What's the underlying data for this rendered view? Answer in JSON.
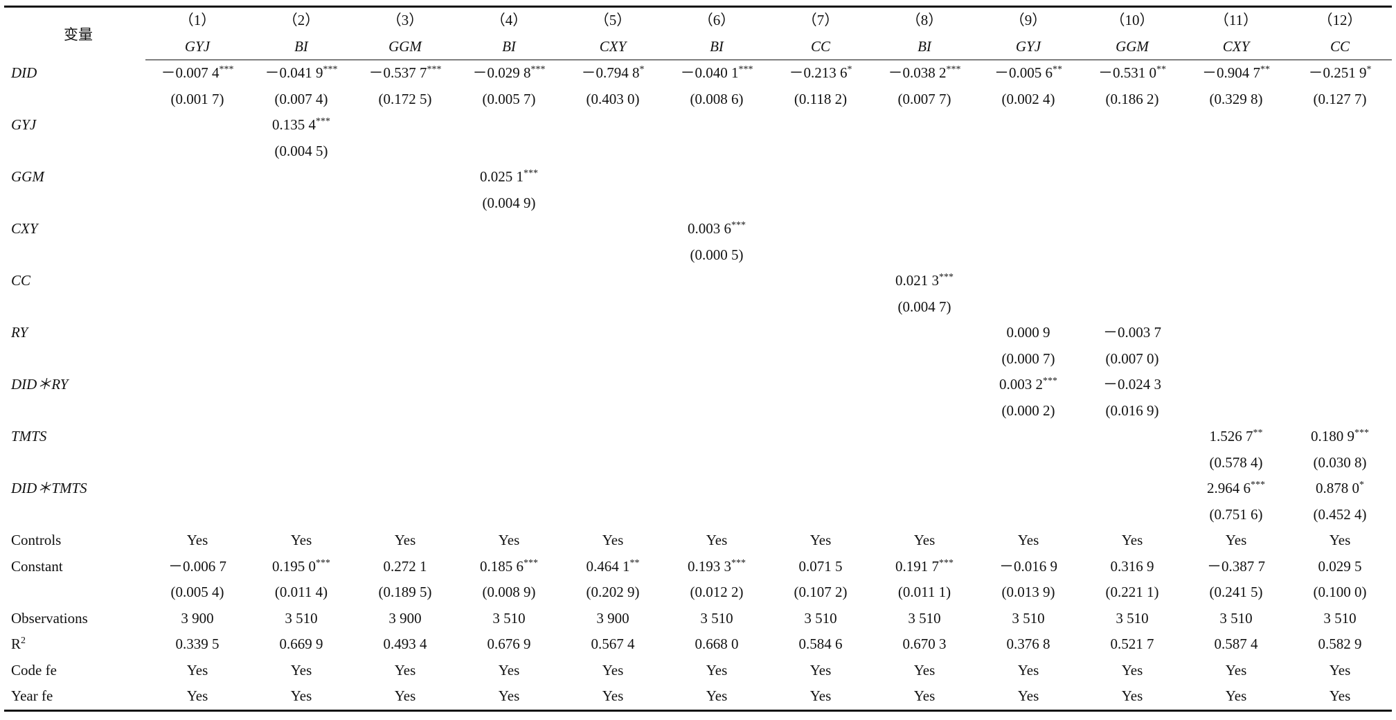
{
  "table": {
    "header": {
      "label": "变量",
      "columns": [
        {
          "number": "（1）",
          "dep": "GYJ"
        },
        {
          "number": "（2）",
          "dep": "BI"
        },
        {
          "number": "（3）",
          "dep": "GGM"
        },
        {
          "number": "（4）",
          "dep": "BI"
        },
        {
          "number": "（5）",
          "dep": "CXY"
        },
        {
          "number": "（6）",
          "dep": "BI"
        },
        {
          "number": "（7）",
          "dep": "CC"
        },
        {
          "number": "（8）",
          "dep": "BI"
        },
        {
          "number": "（9）",
          "dep": "GYJ"
        },
        {
          "number": "（10）",
          "dep": "GGM"
        },
        {
          "number": "（11）",
          "dep": "CXY"
        },
        {
          "number": "（12）",
          "dep": "CC"
        }
      ]
    },
    "variable_rows": [
      {
        "label": "DID",
        "cells": [
          {
            "coef": "－0.007 4",
            "stars": "***",
            "se": "(0.001 7)"
          },
          {
            "coef": "－0.041 9",
            "stars": "***",
            "se": "(0.007 4)"
          },
          {
            "coef": "－0.537 7",
            "stars": "***",
            "se": "(0.172 5)"
          },
          {
            "coef": "－0.029 8",
            "stars": "***",
            "se": "(0.005 7)"
          },
          {
            "coef": "－0.794 8",
            "stars": "*",
            "se": "(0.403 0)"
          },
          {
            "coef": "－0.040 1",
            "stars": "***",
            "se": "(0.008 6)"
          },
          {
            "coef": "－0.213 6",
            "stars": "*",
            "se": "(0.118 2)"
          },
          {
            "coef": "－0.038 2",
            "stars": "***",
            "se": "(0.007 7)"
          },
          {
            "coef": "－0.005 6",
            "stars": "**",
            "se": "(0.002 4)"
          },
          {
            "coef": "－0.531 0",
            "stars": "**",
            "se": "(0.186 2)"
          },
          {
            "coef": "－0.904 7",
            "stars": "**",
            "se": "(0.329 8)"
          },
          {
            "coef": "－0.251 9",
            "stars": "*",
            "se": "(0.127 7)"
          }
        ]
      },
      {
        "label": "GYJ",
        "cells": [
          null,
          {
            "coef": "0.135 4",
            "stars": "***",
            "se": "(0.004 5)"
          },
          null,
          null,
          null,
          null,
          null,
          null,
          null,
          null,
          null,
          null
        ]
      },
      {
        "label": "GGM",
        "cells": [
          null,
          null,
          null,
          {
            "coef": "0.025 1",
            "stars": "***",
            "se": "(0.004 9)"
          },
          null,
          null,
          null,
          null,
          null,
          null,
          null,
          null
        ]
      },
      {
        "label": "CXY",
        "cells": [
          null,
          null,
          null,
          null,
          null,
          {
            "coef": "0.003 6",
            "stars": "***",
            "se": "(0.000 5)"
          },
          null,
          null,
          null,
          null,
          null,
          null
        ]
      },
      {
        "label": "CC",
        "cells": [
          null,
          null,
          null,
          null,
          null,
          null,
          null,
          {
            "coef": "0.021 3",
            "stars": "***",
            "se": "(0.004 7)"
          },
          null,
          null,
          null,
          null
        ]
      },
      {
        "label": "RY",
        "cells": [
          null,
          null,
          null,
          null,
          null,
          null,
          null,
          null,
          {
            "coef": "0.000 9",
            "se": "(0.000 7)"
          },
          {
            "coef": "－0.003 7",
            "se": "(0.007 0)"
          },
          null,
          null
        ]
      },
      {
        "label": "DID＊RY",
        "cells": [
          null,
          null,
          null,
          null,
          null,
          null,
          null,
          null,
          {
            "coef": "0.003 2",
            "stars": "***",
            "se": "(0.000 2)"
          },
          {
            "coef": "－0.024 3",
            "se": "(0.016 9)"
          },
          null,
          null
        ]
      },
      {
        "label": "TMTS",
        "cells": [
          null,
          null,
          null,
          null,
          null,
          null,
          null,
          null,
          null,
          null,
          {
            "coef": "1.526 7",
            "stars": "**",
            "se": "(0.578 4)"
          },
          {
            "coef": "0.180 9",
            "stars": "***",
            "se": "(0.030 8)"
          }
        ]
      },
      {
        "label": "DID＊TMTS",
        "cells": [
          null,
          null,
          null,
          null,
          null,
          null,
          null,
          null,
          null,
          null,
          {
            "coef": "2.964 6",
            "stars": "***",
            "se": "(0.751 6)"
          },
          {
            "coef": "0.878 0",
            "stars": "*",
            "se": "(0.452 4)"
          }
        ]
      }
    ],
    "stat_rows": [
      {
        "label": "Controls",
        "cells": [
          "Yes",
          "Yes",
          "Yes",
          "Yes",
          "Yes",
          "Yes",
          "Yes",
          "Yes",
          "Yes",
          "Yes",
          "Yes",
          "Yes"
        ]
      },
      {
        "label": "Constant",
        "cells": [
          {
            "coef": "－0.006 7",
            "se": "(0.005 4)"
          },
          {
            "coef": "0.195 0",
            "stars": "***",
            "se": "(0.011 4)"
          },
          {
            "coef": "0.272 1",
            "se": "(0.189 5)"
          },
          {
            "coef": "0.185 6",
            "stars": "***",
            "se": "(0.008 9)"
          },
          {
            "coef": "0.464 1",
            "stars": "**",
            "se": "(0.202 9)"
          },
          {
            "coef": "0.193 3",
            "stars": "***",
            "se": "(0.012 2)"
          },
          {
            "coef": "0.071 5",
            "se": "(0.107 2)"
          },
          {
            "coef": "0.191 7",
            "stars": "***",
            "se": "(0.011 1)"
          },
          {
            "coef": "－0.016 9",
            "se": "(0.013 9)"
          },
          {
            "coef": "0.316 9",
            "se": "(0.221 1)"
          },
          {
            "coef": "－0.387 7",
            "se": "(0.241 5)"
          },
          {
            "coef": "0.029 5",
            "se": "(0.100 0)"
          }
        ]
      },
      {
        "label": "Observations",
        "cells": [
          "3 900",
          "3 510",
          "3 900",
          "3 510",
          "3 900",
          "3 510",
          "3 510",
          "3 510",
          "3 510",
          "3 510",
          "3 510",
          "3 510"
        ]
      },
      {
        "label": {
          "text": "R",
          "sup": "2"
        },
        "cells": [
          "0.339 5",
          "0.669 9",
          "0.493 4",
          "0.676 9",
          "0.567 4",
          "0.668 0",
          "0.584 6",
          "0.670 3",
          "0.376 8",
          "0.521 7",
          "0.587 4",
          "0.582 9"
        ]
      },
      {
        "label": "Code fe",
        "cells": [
          "Yes",
          "Yes",
          "Yes",
          "Yes",
          "Yes",
          "Yes",
          "Yes",
          "Yes",
          "Yes",
          "Yes",
          "Yes",
          "Yes"
        ]
      },
      {
        "label": "Year fe",
        "cells": [
          "Yes",
          "Yes",
          "Yes",
          "Yes",
          "Yes",
          "Yes",
          "Yes",
          "Yes",
          "Yes",
          "Yes",
          "Yes",
          "Yes"
        ]
      }
    ]
  }
}
